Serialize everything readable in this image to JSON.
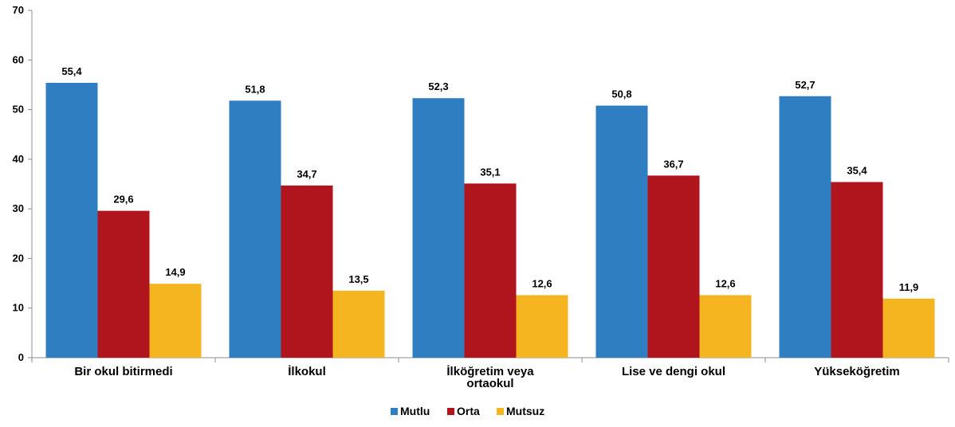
{
  "chart_data": {
    "type": "bar",
    "title": "",
    "xlabel": "",
    "ylabel": "",
    "ylim": [
      0,
      70
    ],
    "yticks": [
      0,
      10,
      20,
      30,
      40,
      50,
      60,
      70
    ],
    "grid": false,
    "legend_position": "bottom-center",
    "categories": [
      [
        "Bir okul bitirmedi"
      ],
      [
        "İlkokul"
      ],
      [
        "İlköğretim veya",
        "ortaokul"
      ],
      [
        "Lise ve dengi okul"
      ],
      [
        "Yükseköğretim"
      ]
    ],
    "series": [
      {
        "name": "Mutlu",
        "color": "#2e7ec1",
        "values": [
          55.4,
          51.8,
          52.3,
          50.8,
          52.7
        ],
        "labels": [
          "55,4",
          "51,8",
          "52,3",
          "50,8",
          "52,7"
        ]
      },
      {
        "name": "Orta",
        "color": "#b0141c",
        "values": [
          29.6,
          34.7,
          35.1,
          36.7,
          35.4
        ],
        "labels": [
          "29,6",
          "34,7",
          "35,1",
          "36,7",
          "35,4"
        ]
      },
      {
        "name": "Mutsuz",
        "color": "#f5b521",
        "values": [
          14.9,
          13.5,
          12.6,
          12.6,
          11.9
        ],
        "labels": [
          "14,9",
          "13,5",
          "12,6",
          "12,6",
          "11,9"
        ]
      }
    ]
  }
}
